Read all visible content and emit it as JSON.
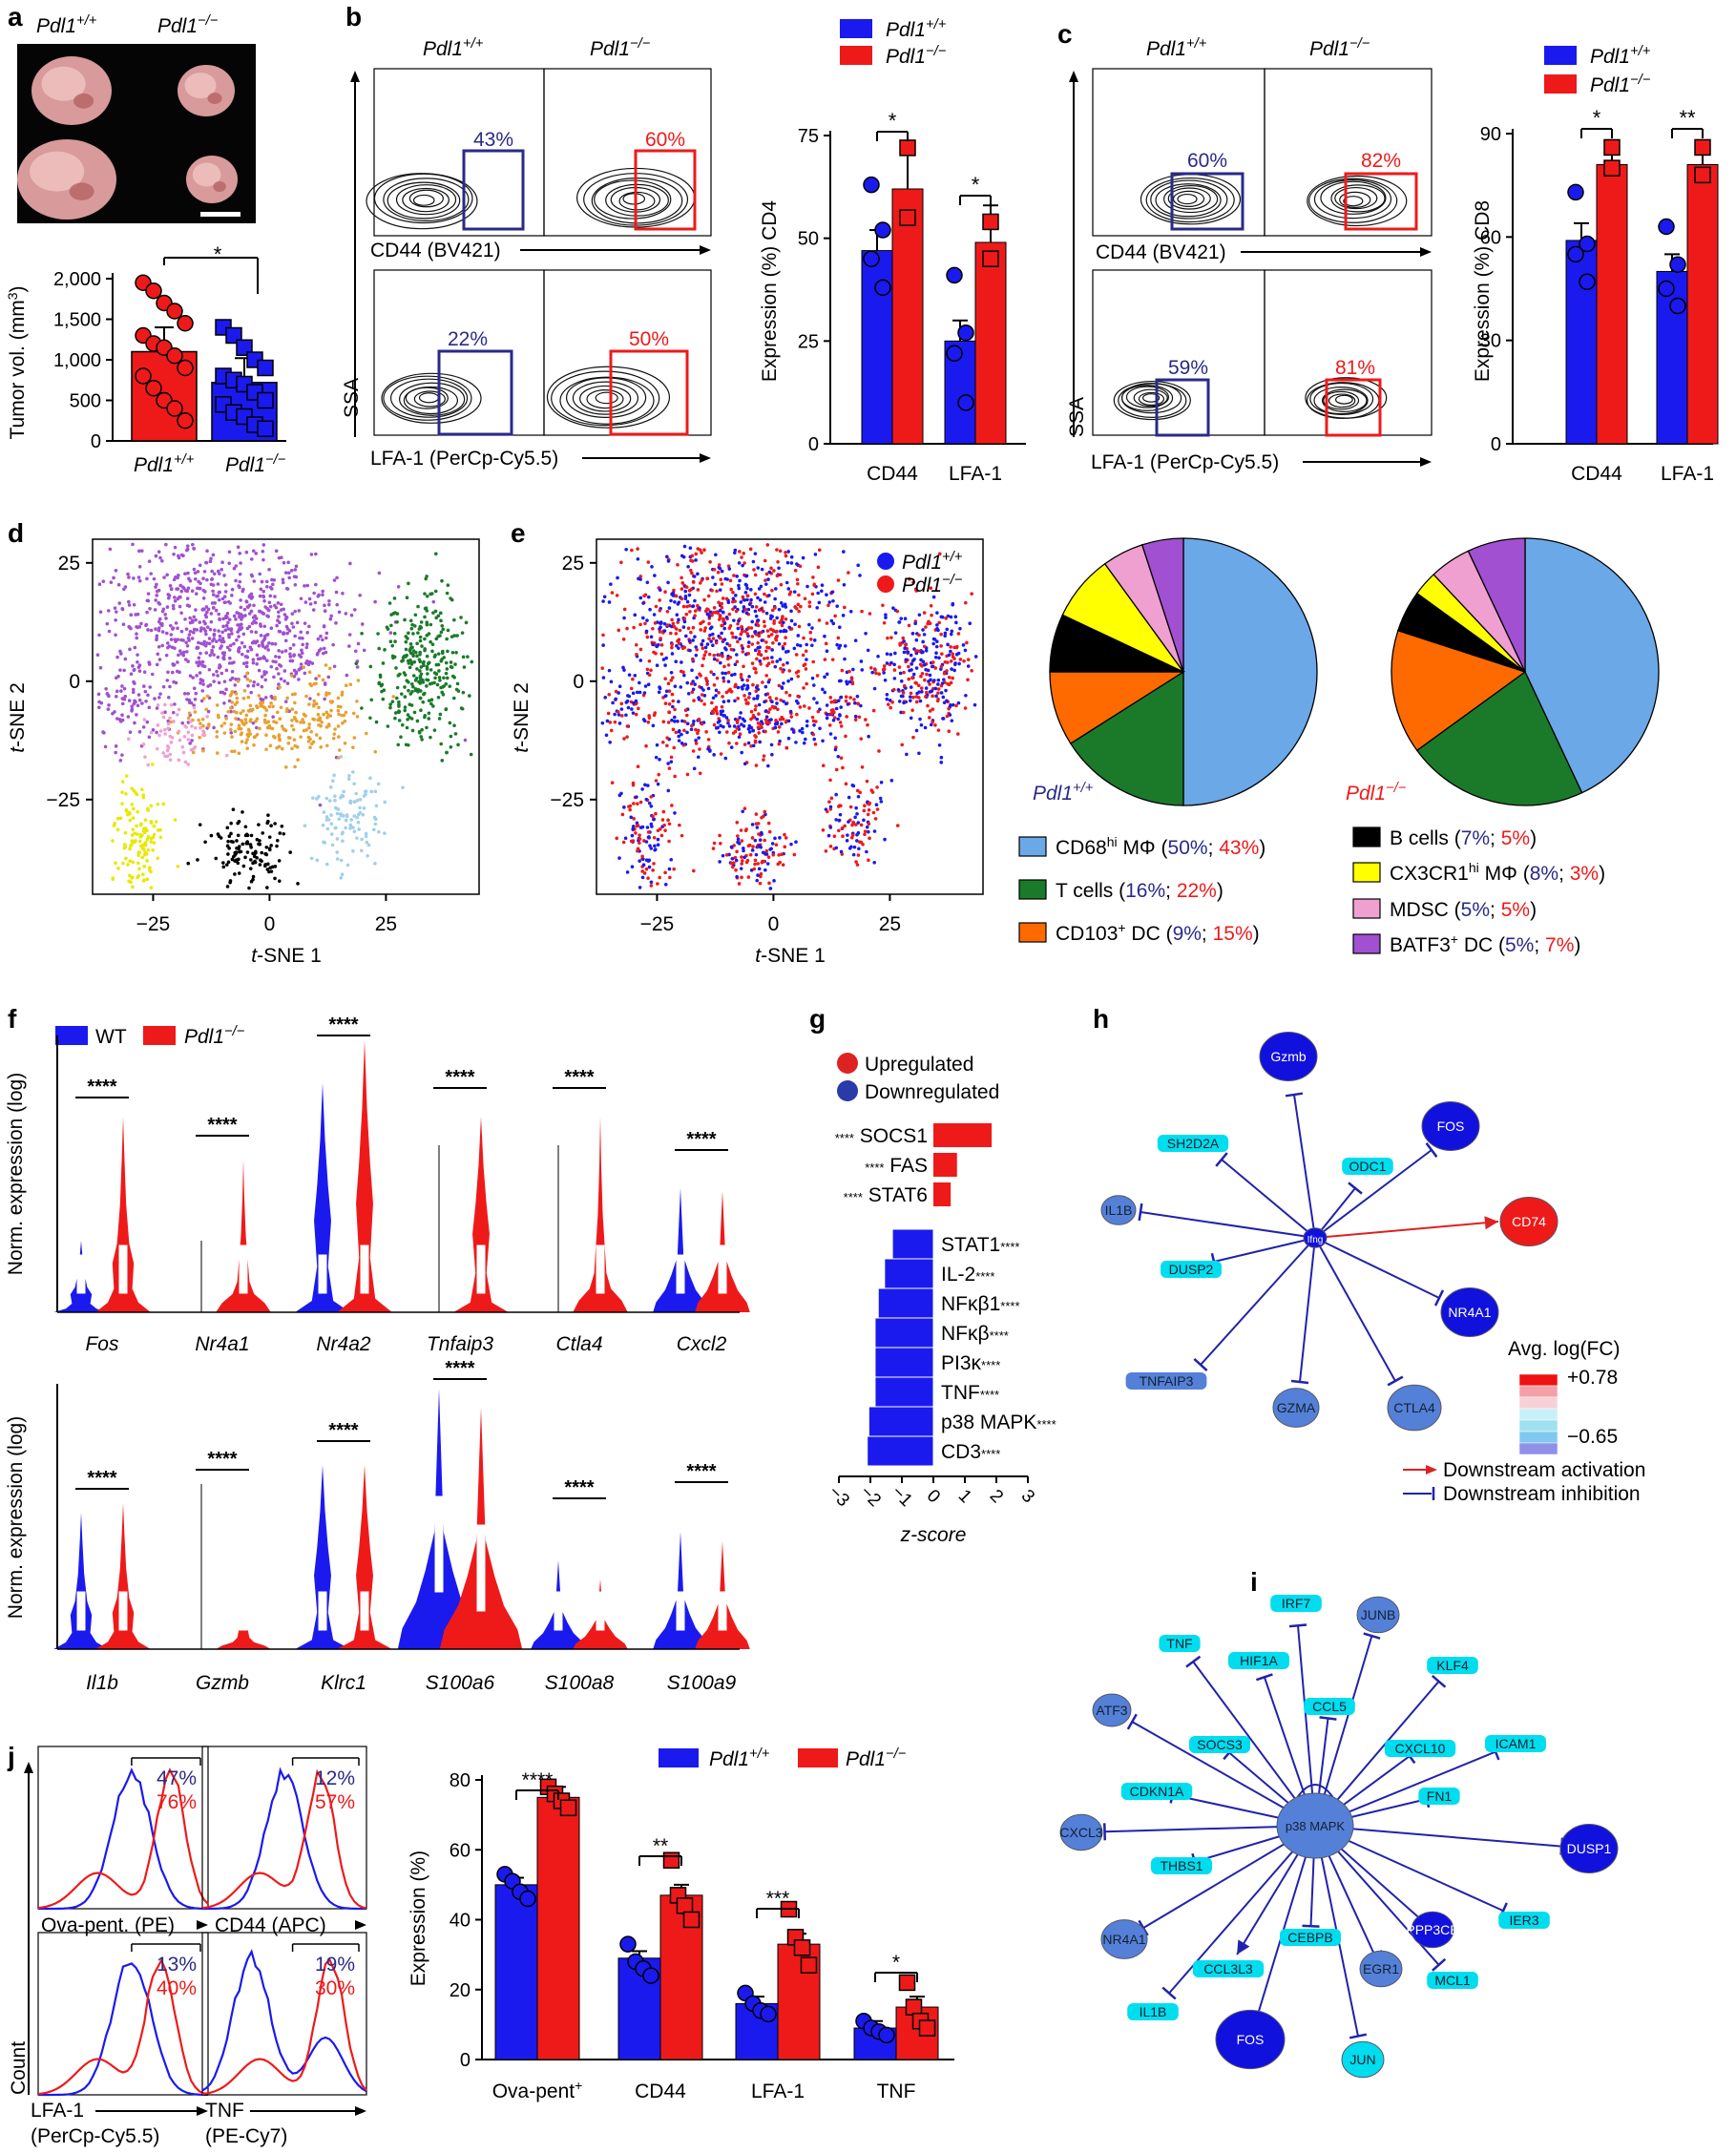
{
  "panel_labels": {
    "a": "a",
    "b": "b",
    "c": "c",
    "d": "d",
    "e": "e",
    "f": "f",
    "g": "g",
    "h": "h",
    "i": "i",
    "j": "j"
  },
  "genotypes": {
    "wt": "Pdl1+/+",
    "ko": "Pdl1−/−",
    "wt_base": "Pdl1",
    "wt_sup": "+/+",
    "ko_base": "Pdl1",
    "ko_sup": "−/−",
    "wt_alt": "WT"
  },
  "colors": {
    "blue": "#1a1aee",
    "red": "#ee1a1a",
    "dark_blue": "#2a2a88",
    "light_blue": "#6aa8e8",
    "green": "#1a7a2a",
    "orange": "#ff6a00",
    "black": "#000000",
    "yellow": "#ffff00",
    "pink": "#f0a0d0",
    "violet": "#a050d0",
    "cyan": "#00ddee",
    "node_blue": "#5580d8"
  },
  "panel_a": {
    "ylabel": "Tumor vol. (mm",
    "ylabel_sup": "3",
    "ylabel_end": ")",
    "sig": "*",
    "chart_data": {
      "type": "bar",
      "categories": [
        "Pdl1+/+",
        "Pdl1−/−"
      ],
      "values": [
        1100,
        720
      ],
      "ylim": [
        0,
        2000
      ],
      "yticks": [
        "0",
        "500",
        "1,000",
        "1,500",
        "2,000"
      ],
      "points": [
        [
          1950,
          1850,
          1700,
          1600,
          1450,
          1300,
          1200,
          1150,
          1050,
          900,
          800,
          650,
          500,
          400,
          250
        ],
        [
          1400,
          1300,
          1150,
          1000,
          900,
          800,
          750,
          700,
          600,
          500,
          450,
          350,
          300,
          200,
          150
        ]
      ]
    }
  },
  "panel_b": {
    "top_xlabel": "CD44 (BV421)",
    "bottom_xlabel": "LFA-1 (PerCp-Cy5.5)",
    "ylabel": "SSA",
    "gates": {
      "top_wt": "43%",
      "top_ko": "60%",
      "bottom_wt": "22%",
      "bottom_ko": "50%"
    },
    "chart_data": {
      "type": "bar",
      "categories": [
        "CD44",
        "LFA-1"
      ],
      "ylabel": "Expression (%) CD4",
      "ylim": [
        0,
        75
      ],
      "yticks": [
        "0",
        "25",
        "50",
        "75"
      ],
      "series": [
        {
          "name": "Pdl1+/+",
          "values": [
            47,
            25
          ]
        },
        {
          "name": "Pdl1−/−",
          "values": [
            62,
            49
          ]
        }
      ],
      "points": {
        "wt": [
          [
            63,
            52,
            45,
            38
          ],
          [
            41,
            27,
            22,
            10
          ]
        ],
        "ko": [
          [
            72,
            55
          ],
          [
            54,
            45
          ]
        ]
      },
      "sig": [
        "*",
        "*"
      ]
    }
  },
  "panel_c": {
    "top_xlabel": "CD44 (BV421)",
    "bottom_xlabel": "LFA-1 (PerCp-Cy5.5)",
    "ylabel": "SSA",
    "gates": {
      "top_wt": "60%",
      "top_ko": "82%",
      "bottom_wt": "59%",
      "bottom_ko": "81%"
    },
    "chart_data": {
      "type": "bar",
      "categories": [
        "CD44",
        "LFA-1"
      ],
      "ylabel": "Expression (%) CD8",
      "ylim": [
        0,
        90
      ],
      "yticks": [
        "0",
        "30",
        "60",
        "90"
      ],
      "series": [
        {
          "name": "Pdl1+/+",
          "values": [
            59,
            50
          ]
        },
        {
          "name": "Pdl1−/−",
          "values": [
            81,
            81
          ]
        }
      ],
      "points": {
        "wt": [
          [
            73,
            58,
            55,
            47
          ],
          [
            63,
            52,
            45,
            40
          ]
        ],
        "ko": [
          [
            86,
            80
          ],
          [
            86,
            78
          ]
        ]
      },
      "sig": [
        "*",
        "**"
      ]
    }
  },
  "panel_d": {
    "xlabel": "t-SNE 1",
    "ylabel": "t-SNE 2",
    "xlabel_it": "t",
    "xlabel_rest": "-SNE 1",
    "ylabel_it": "t",
    "ylabel_rest": "-SNE 2",
    "xticks": [
      "−25",
      "0",
      "25"
    ],
    "yticks": [
      "25",
      "0",
      "−25"
    ],
    "chart_data": {
      "type": "scatter",
      "xlim": [
        -38,
        45
      ],
      "ylim": [
        -45,
        30
      ]
    }
  },
  "panel_e": {
    "legend": [
      "Pdl1+/+",
      "Pdl1−/−"
    ],
    "xticks": [
      "−25",
      "0",
      "25"
    ],
    "yticks": [
      "25",
      "0",
      "−25"
    ],
    "pie_wt_label": "Pdl1+/+",
    "pie_ko_label": "Pdl1−/−",
    "chart_data": {
      "type": "pie",
      "categories": [
        "CD68hi MΦ",
        "T cells",
        "CD103+ DC",
        "B cells",
        "CX3CR1hi MΦ",
        "MDSC",
        "BATF3+ DC"
      ],
      "wt": [
        50,
        16,
        9,
        7,
        8,
        5,
        5
      ],
      "ko": [
        43,
        22,
        15,
        5,
        3,
        5,
        7
      ]
    },
    "legend_items": [
      {
        "base": "CD68",
        "sup": "hi",
        "rest": " MΦ (",
        "wt": "50%",
        "sep": "; ",
        "ko": "43%",
        "end": ")"
      },
      {
        "base": "T cells",
        "sup": "",
        "rest": " (",
        "wt": "16%",
        "sep": "; ",
        "ko": "22%",
        "end": ")"
      },
      {
        "base": "CD103",
        "sup": "+",
        "rest": " DC (",
        "wt": "9%",
        "sep": "; ",
        "ko": "15%",
        "end": ")"
      },
      {
        "base": "B cells",
        "sup": "",
        "rest": " (",
        "wt": "7%",
        "sep": "; ",
        "ko": "5%",
        "end": ")"
      },
      {
        "base": "CX3CR1",
        "sup": "hi",
        "rest": " MΦ (",
        "wt": "8%",
        "sep": "; ",
        "ko": "3%",
        "end": ")"
      },
      {
        "base": "MDSC",
        "sup": "",
        "rest": " (",
        "wt": "5%",
        "sep": "; ",
        "ko": "5%",
        "end": ")"
      },
      {
        "base": "BATF3",
        "sup": "+",
        "rest": " DC (",
        "wt": "5%",
        "sep": "; ",
        "ko": "7%",
        "end": ")"
      }
    ]
  },
  "panel_f": {
    "ylabel": "Norm. expression (log)",
    "legend": [
      "WT",
      "Pdl1−/−"
    ],
    "sig": "****",
    "chart_data": {
      "type": "violin",
      "genes_top": [
        "Fos",
        "Nr4a1",
        "Nr4a2",
        "Tnfaip3",
        "Ctla4",
        "Cxcl2"
      ],
      "genes_bottom": [
        "Il1b",
        "Gzmb",
        "Klrc1",
        "S100a6",
        "S100a8",
        "S100a9"
      ]
    }
  },
  "panel_g": {
    "legend": [
      "Upregulated",
      "Downregulated"
    ],
    "xlabel": "z-score",
    "chart_data": {
      "type": "bar",
      "orientation": "horizontal",
      "xlim": [
        -3,
        3
      ],
      "xticks": [
        "−3",
        "−2",
        "−1",
        "0",
        "1",
        "2",
        "3"
      ],
      "up": [
        {
          "label": "SOCS1",
          "value": 1.85
        },
        {
          "label": "FAS",
          "value": 0.75
        },
        {
          "label": "STAT6",
          "value": 0.55
        }
      ],
      "down": [
        {
          "label": "STAT1",
          "value": -1.3
        },
        {
          "label": "IL-2",
          "value": -1.55
        },
        {
          "label": "NFκβ1",
          "value": -1.75
        },
        {
          "label": "NFκβ",
          "value": -1.85
        },
        {
          "label": "PI3κ",
          "value": -1.85
        },
        {
          "label": "TNF",
          "value": -1.85
        },
        {
          "label": "p38 MAPK",
          "value": -2.05
        },
        {
          "label": "CD3",
          "value": -2.1
        }
      ],
      "sig": "****"
    }
  },
  "panel_h": {
    "center": "Ifng",
    "nodes": [
      "Gzmb",
      "SH2D2A",
      "ODC1",
      "FOS",
      "IL1B",
      "CD74",
      "DUSP2",
      "NR4A1",
      "TNFAIP3",
      "GZMA",
      "CTLA4"
    ],
    "scale_title": "Avg. log(FC)",
    "scale_max": "+0.78",
    "scale_min": "−0.65",
    "legend_act": "Downstream activation",
    "legend_inh": "Downstream inhibition"
  },
  "panel_i": {
    "center": "p38 MAPK",
    "nodes": [
      "IRF7",
      "JUNB",
      "TNF",
      "HIF1A",
      "KLF4",
      "ATF3",
      "CCL5",
      "SOCS3",
      "CXCL10",
      "ICAM1",
      "CDKN1A",
      "FN1",
      "CXCL3",
      "THBS1",
      "DUSP1",
      "CEBPB",
      "PPP3CB",
      "IER3",
      "NR4A1",
      "CCL3L3",
      "EGR1",
      "MCL1",
      "IL1B",
      "FOS",
      "JUN"
    ]
  },
  "panel_j": {
    "hist_xlabels": [
      "Ova-pent. (PE)",
      "CD44 (APC)",
      "LFA-1",
      "TNF"
    ],
    "hist_xlabels_sub": [
      "",
      "",
      "(PerCp-Cy5.5)",
      "(PE-Cy7)"
    ],
    "hist_ylabel": "Count",
    "gates": [
      [
        "47%",
        "76%"
      ],
      [
        "12%",
        "57%"
      ],
      [
        "13%",
        "40%"
      ],
      [
        "19%",
        "30%"
      ]
    ],
    "chart_data": {
      "type": "bar",
      "ylabel": "Expression (%)",
      "ylim": [
        0,
        80
      ],
      "yticks": [
        "0",
        "20",
        "40",
        "60",
        "80"
      ],
      "categories": [
        "Ova-pent+",
        "CD44",
        "LFA-1",
        "TNF"
      ],
      "series": [
        {
          "name": "Pdl1+/+",
          "values": [
            50,
            29,
            16,
            9
          ]
        },
        {
          "name": "Pdl1−/−",
          "values": [
            75,
            47,
            33,
            15
          ]
        }
      ],
      "points": {
        "wt": [
          [
            53,
            51,
            48,
            46
          ],
          [
            33,
            28,
            26,
            24
          ],
          [
            19,
            16,
            14,
            13
          ],
          [
            11,
            9,
            8,
            7
          ]
        ],
        "ko": [
          [
            78,
            76,
            74,
            72
          ],
          [
            57,
            47,
            44,
            40
          ],
          [
            43,
            35,
            32,
            27
          ],
          [
            22,
            15,
            11,
            9
          ]
        ]
      },
      "sig": [
        "****",
        "**",
        "***",
        "*"
      ],
      "cat_base": [
        "Ova-pent",
        "CD44",
        "LFA-1",
        "TNF"
      ],
      "cat_sup": [
        "+",
        "",
        "",
        ""
      ]
    }
  }
}
